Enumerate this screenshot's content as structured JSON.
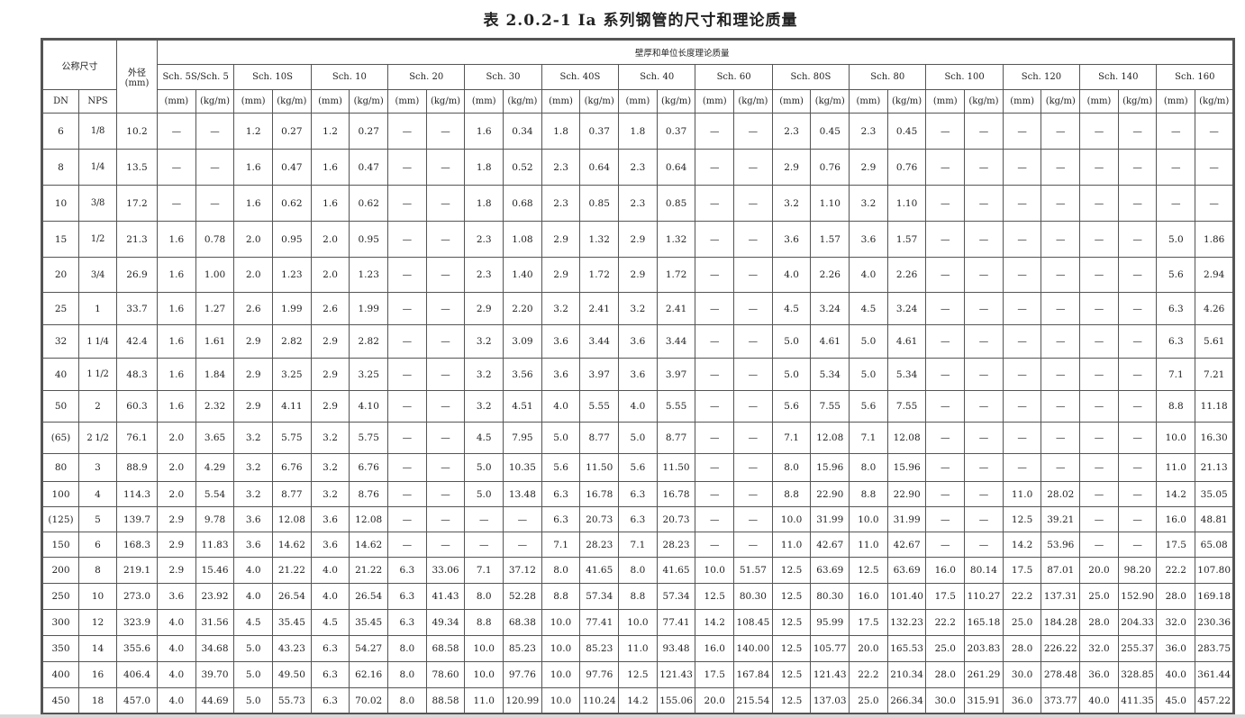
{
  "title": "表 2.0.2-1  Ia 系列钢管的尺寸和理论质量",
  "header": {
    "nominal": "公称尺寸",
    "od": "外径",
    "od_unit": "(mm)",
    "group": "壁厚和单位长度理论质量",
    "dn": "DN",
    "nps": "NPS",
    "mm": "(mm)",
    "kgm": "(kg/m)",
    "schedules": [
      "Sch. 5S/Sch. 5",
      "Sch. 10S",
      "Sch. 10",
      "Sch. 20",
      "Sch. 30",
      "Sch. 40S",
      "Sch. 40",
      "Sch. 60",
      "Sch. 80S",
      "Sch. 80",
      "Sch. 100",
      "Sch. 120",
      "Sch. 140",
      "Sch. 160"
    ]
  },
  "rows": [
    {
      "dn": "6",
      "nps": "1/8",
      "od": "10.2",
      "v": [
        "—",
        "—",
        "1.2",
        "0.27",
        "1.2",
        "0.27",
        "—",
        "—",
        "1.6",
        "0.34",
        "1.8",
        "0.37",
        "1.8",
        "0.37",
        "—",
        "—",
        "2.3",
        "0.45",
        "2.3",
        "0.45",
        "—",
        "—",
        "—",
        "—",
        "—",
        "—",
        "—",
        "—"
      ]
    },
    {
      "dn": "8",
      "nps": "1/4",
      "od": "13.5",
      "v": [
        "—",
        "—",
        "1.6",
        "0.47",
        "1.6",
        "0.47",
        "—",
        "—",
        "1.8",
        "0.52",
        "2.3",
        "0.64",
        "2.3",
        "0.64",
        "—",
        "—",
        "2.9",
        "0.76",
        "2.9",
        "0.76",
        "—",
        "—",
        "—",
        "—",
        "—",
        "—",
        "—",
        "—"
      ]
    },
    {
      "dn": "10",
      "nps": "3/8",
      "od": "17.2",
      "v": [
        "—",
        "—",
        "1.6",
        "0.62",
        "1.6",
        "0.62",
        "—",
        "—",
        "1.8",
        "0.68",
        "2.3",
        "0.85",
        "2.3",
        "0.85",
        "—",
        "—",
        "3.2",
        "1.10",
        "3.2",
        "1.10",
        "—",
        "—",
        "—",
        "—",
        "—",
        "—",
        "—",
        "—"
      ]
    },
    {
      "dn": "15",
      "nps": "1/2",
      "od": "21.3",
      "v": [
        "1.6",
        "0.78",
        "2.0",
        "0.95",
        "2.0",
        "0.95",
        "—",
        "—",
        "2.3",
        "1.08",
        "2.9",
        "1.32",
        "2.9",
        "1.32",
        "—",
        "—",
        "3.6",
        "1.57",
        "3.6",
        "1.57",
        "—",
        "—",
        "—",
        "—",
        "—",
        "—",
        "5.0",
        "1.86"
      ]
    },
    {
      "dn": "20",
      "nps": "3/4",
      "od": "26.9",
      "v": [
        "1.6",
        "1.00",
        "2.0",
        "1.23",
        "2.0",
        "1.23",
        "—",
        "—",
        "2.3",
        "1.40",
        "2.9",
        "1.72",
        "2.9",
        "1.72",
        "—",
        "—",
        "4.0",
        "2.26",
        "4.0",
        "2.26",
        "—",
        "—",
        "—",
        "—",
        "—",
        "—",
        "5.6",
        "2.94"
      ]
    },
    {
      "dn": "25",
      "nps": "1",
      "od": "33.7",
      "v": [
        "1.6",
        "1.27",
        "2.6",
        "1.99",
        "2.6",
        "1.99",
        "—",
        "—",
        "2.9",
        "2.20",
        "3.2",
        "2.41",
        "3.2",
        "2.41",
        "—",
        "—",
        "4.5",
        "3.24",
        "4.5",
        "3.24",
        "—",
        "—",
        "—",
        "—",
        "—",
        "—",
        "6.3",
        "4.26"
      ]
    },
    {
      "dn": "32",
      "nps": "1 1/4",
      "od": "42.4",
      "v": [
        "1.6",
        "1.61",
        "2.9",
        "2.82",
        "2.9",
        "2.82",
        "—",
        "—",
        "3.2",
        "3.09",
        "3.6",
        "3.44",
        "3.6",
        "3.44",
        "—",
        "—",
        "5.0",
        "4.61",
        "5.0",
        "4.61",
        "—",
        "—",
        "—",
        "—",
        "—",
        "—",
        "6.3",
        "5.61"
      ]
    },
    {
      "dn": "40",
      "nps": "1 1/2",
      "od": "48.3",
      "v": [
        "1.6",
        "1.84",
        "2.9",
        "3.25",
        "2.9",
        "3.25",
        "—",
        "—",
        "3.2",
        "3.56",
        "3.6",
        "3.97",
        "3.6",
        "3.97",
        "—",
        "—",
        "5.0",
        "5.34",
        "5.0",
        "5.34",
        "—",
        "—",
        "—",
        "—",
        "—",
        "—",
        "7.1",
        "7.21"
      ]
    },
    {
      "dn": "50",
      "nps": "2",
      "od": "60.3",
      "v": [
        "1.6",
        "2.32",
        "2.9",
        "4.11",
        "2.9",
        "4.10",
        "—",
        "—",
        "3.2",
        "4.51",
        "4.0",
        "5.55",
        "4.0",
        "5.55",
        "—",
        "—",
        "5.6",
        "7.55",
        "5.6",
        "7.55",
        "—",
        "—",
        "—",
        "—",
        "—",
        "—",
        "8.8",
        "11.18"
      ]
    },
    {
      "dn": "(65)",
      "nps": "2 1/2",
      "od": "76.1",
      "v": [
        "2.0",
        "3.65",
        "3.2",
        "5.75",
        "3.2",
        "5.75",
        "—",
        "—",
        "4.5",
        "7.95",
        "5.0",
        "8.77",
        "5.0",
        "8.77",
        "—",
        "—",
        "7.1",
        "12.08",
        "7.1",
        "12.08",
        "—",
        "—",
        "—",
        "—",
        "—",
        "—",
        "10.0",
        "16.30"
      ]
    },
    {
      "dn": "80",
      "nps": "3",
      "od": "88.9",
      "v": [
        "2.0",
        "4.29",
        "3.2",
        "6.76",
        "3.2",
        "6.76",
        "—",
        "—",
        "5.0",
        "10.35",
        "5.6",
        "11.50",
        "5.6",
        "11.50",
        "—",
        "—",
        "8.0",
        "15.96",
        "8.0",
        "15.96",
        "—",
        "—",
        "—",
        "—",
        "—",
        "—",
        "11.0",
        "21.13"
      ]
    },
    {
      "dn": "100",
      "nps": "4",
      "od": "114.3",
      "v": [
        "2.0",
        "5.54",
        "3.2",
        "8.77",
        "3.2",
        "8.76",
        "—",
        "—",
        "5.0",
        "13.48",
        "6.3",
        "16.78",
        "6.3",
        "16.78",
        "—",
        "—",
        "8.8",
        "22.90",
        "8.8",
        "22.90",
        "—",
        "—",
        "11.0",
        "28.02",
        "—",
        "—",
        "14.2",
        "35.05"
      ]
    },
    {
      "dn": "(125)",
      "nps": "5",
      "od": "139.7",
      "v": [
        "2.9",
        "9.78",
        "3.6",
        "12.08",
        "3.6",
        "12.08",
        "—",
        "—",
        "—",
        "—",
        "6.3",
        "20.73",
        "6.3",
        "20.73",
        "—",
        "—",
        "10.0",
        "31.99",
        "10.0",
        "31.99",
        "—",
        "—",
        "12.5",
        "39.21",
        "—",
        "—",
        "16.0",
        "48.81"
      ]
    },
    {
      "dn": "150",
      "nps": "6",
      "od": "168.3",
      "v": [
        "2.9",
        "11.83",
        "3.6",
        "14.62",
        "3.6",
        "14.62",
        "—",
        "—",
        "—",
        "—",
        "7.1",
        "28.23",
        "7.1",
        "28.23",
        "—",
        "—",
        "11.0",
        "42.67",
        "11.0",
        "42.67",
        "—",
        "—",
        "14.2",
        "53.96",
        "—",
        "—",
        "17.5",
        "65.08"
      ]
    },
    {
      "dn": "200",
      "nps": "8",
      "od": "219.1",
      "v": [
        "2.9",
        "15.46",
        "4.0",
        "21.22",
        "4.0",
        "21.22",
        "6.3",
        "33.06",
        "7.1",
        "37.12",
        "8.0",
        "41.65",
        "8.0",
        "41.65",
        "10.0",
        "51.57",
        "12.5",
        "63.69",
        "12.5",
        "63.69",
        "16.0",
        "80.14",
        "17.5",
        "87.01",
        "20.0",
        "98.20",
        "22.2",
        "107.80"
      ]
    },
    {
      "dn": "250",
      "nps": "10",
      "od": "273.0",
      "v": [
        "3.6",
        "23.92",
        "4.0",
        "26.54",
        "4.0",
        "26.54",
        "6.3",
        "41.43",
        "8.0",
        "52.28",
        "8.8",
        "57.34",
        "8.8",
        "57.34",
        "12.5",
        "80.30",
        "12.5",
        "80.30",
        "16.0",
        "101.40",
        "17.5",
        "110.27",
        "22.2",
        "137.31",
        "25.0",
        "152.90",
        "28.0",
        "169.18"
      ]
    },
    {
      "dn": "300",
      "nps": "12",
      "od": "323.9",
      "v": [
        "4.0",
        "31.56",
        "4.5",
        "35.45",
        "4.5",
        "35.45",
        "6.3",
        "49.34",
        "8.8",
        "68.38",
        "10.0",
        "77.41",
        "10.0",
        "77.41",
        "14.2",
        "108.45",
        "12.5",
        "95.99",
        "17.5",
        "132.23",
        "22.2",
        "165.18",
        "25.0",
        "184.28",
        "28.0",
        "204.33",
        "32.0",
        "230.36"
      ]
    },
    {
      "dn": "350",
      "nps": "14",
      "od": "355.6",
      "v": [
        "4.0",
        "34.68",
        "5.0",
        "43.23",
        "6.3",
        "54.27",
        "8.0",
        "68.58",
        "10.0",
        "85.23",
        "10.0",
        "85.23",
        "11.0",
        "93.48",
        "16.0",
        "140.00",
        "12.5",
        "105.77",
        "20.0",
        "165.53",
        "25.0",
        "203.83",
        "28.0",
        "226.22",
        "32.0",
        "255.37",
        "36.0",
        "283.75"
      ]
    },
    {
      "dn": "400",
      "nps": "16",
      "od": "406.4",
      "v": [
        "4.0",
        "39.70",
        "5.0",
        "49.50",
        "6.3",
        "62.16",
        "8.0",
        "78.60",
        "10.0",
        "97.76",
        "10.0",
        "97.76",
        "12.5",
        "121.43",
        "17.5",
        "167.84",
        "12.5",
        "121.43",
        "22.2",
        "210.34",
        "28.0",
        "261.29",
        "30.0",
        "278.48",
        "36.0",
        "328.85",
        "40.0",
        "361.44"
      ]
    },
    {
      "dn": "450",
      "nps": "18",
      "od": "457.0",
      "v": [
        "4.0",
        "44.69",
        "5.0",
        "55.73",
        "6.3",
        "70.02",
        "8.0",
        "88.58",
        "11.0",
        "120.99",
        "10.0",
        "110.24",
        "14.2",
        "155.06",
        "20.0",
        "215.54",
        "12.5",
        "137.03",
        "25.0",
        "266.34",
        "30.0",
        "315.91",
        "36.0",
        "373.77",
        "40.0",
        "411.35",
        "45.0",
        "457.22"
      ]
    }
  ]
}
